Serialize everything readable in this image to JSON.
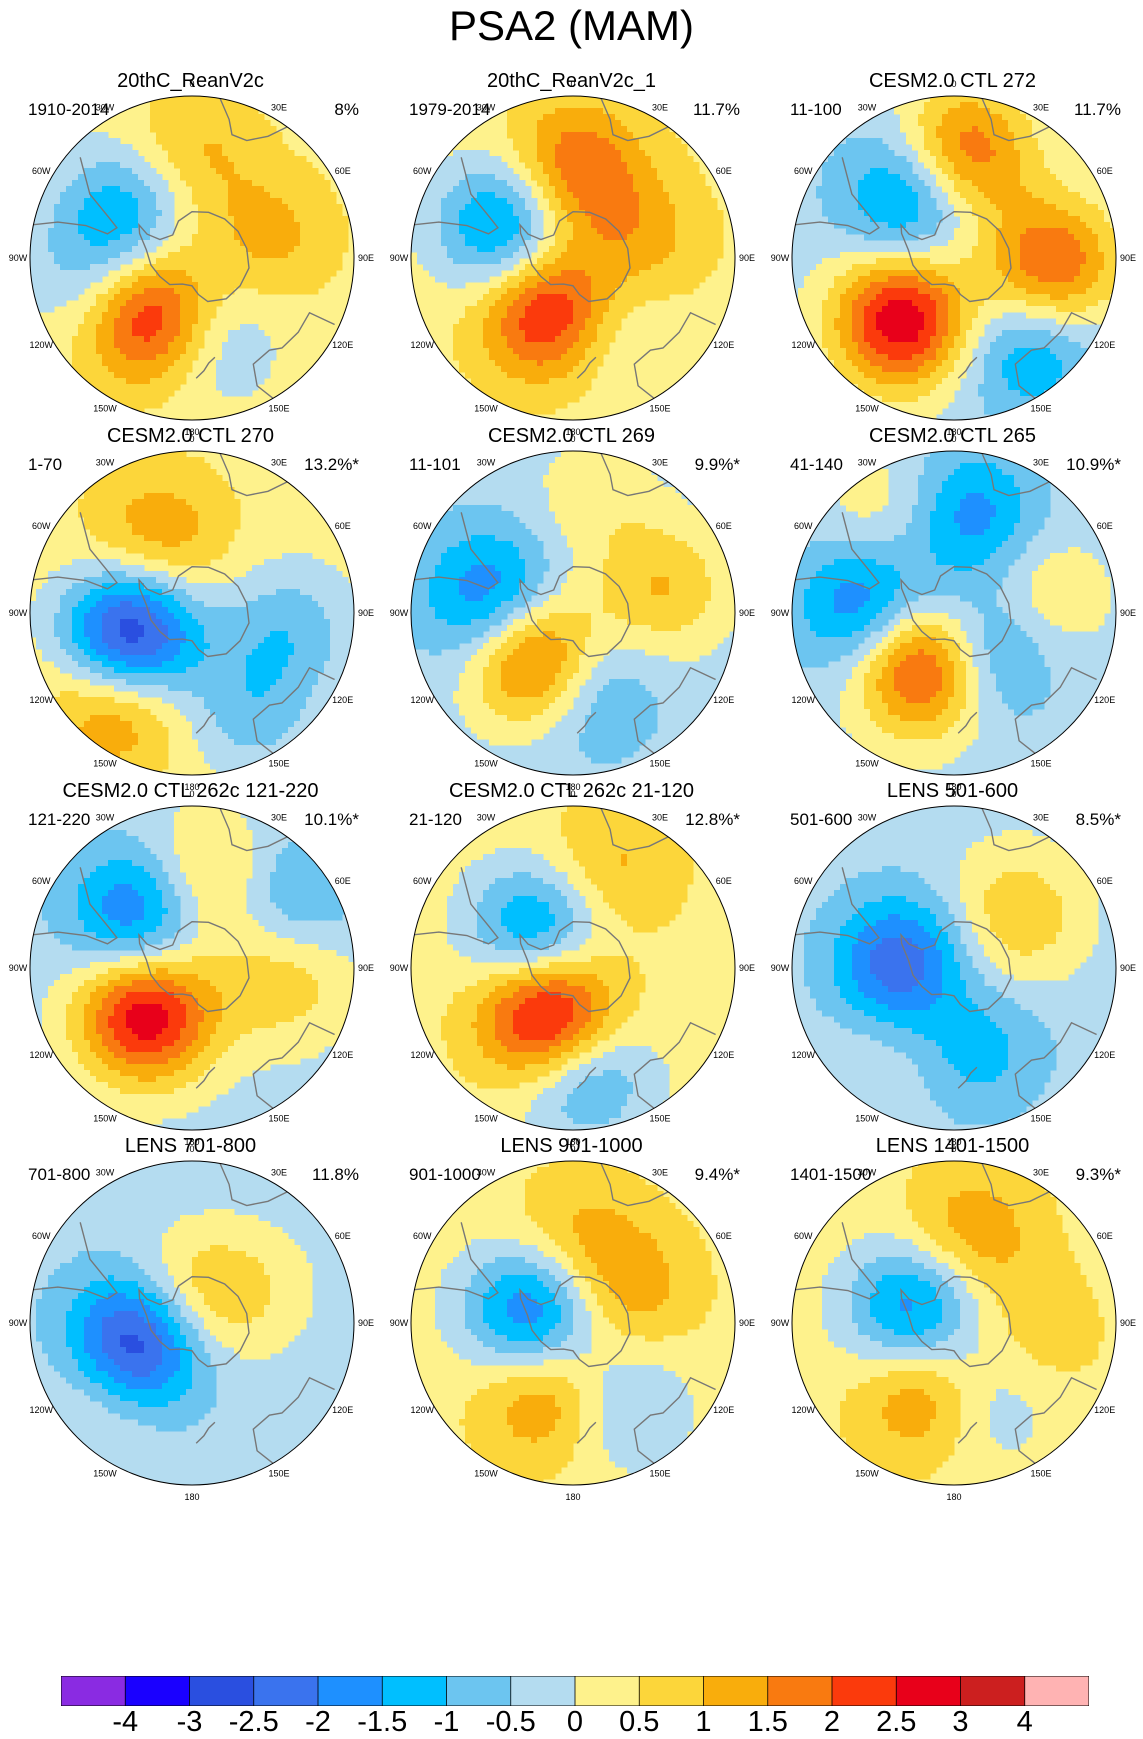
{
  "figure": {
    "title": "PSA2 (MAM)"
  },
  "map_labels": {
    "top": "0",
    "bottom": "180",
    "lon_30w": "30W",
    "lon_30e": "30E",
    "lon_60w": "60W",
    "lon_60e": "60E",
    "lon_90w": "90W",
    "lon_90e": "90E",
    "lon_120w": "120W",
    "lon_120e": "120E",
    "lon_150w": "150W",
    "lon_150e": "150E"
  },
  "colors": {
    "levels": [
      "#8a2be2",
      "#1a00ff",
      "#2a4fe0",
      "#3a73ee",
      "#1e90ff",
      "#00bfff",
      "#6cc5f0",
      "#b4dcf0",
      "#fef28c",
      "#fcd63a",
      "#f9ad0c",
      "#f97a10",
      "#fb3a0c",
      "#e8001a",
      "#cc1f1f",
      "#ffb3b3"
    ],
    "coast": "#777777",
    "frame": "#000000"
  },
  "chart_data": {
    "type": "heatmap",
    "title": "PSA2 (MAM)",
    "legend": {
      "position": "bottom",
      "ticks": [
        "-4",
        "-3",
        "-2.5",
        "-2",
        "-1.5",
        "-1",
        "-0.5",
        "0",
        "0.5",
        "1",
        "1.5",
        "2",
        "2.5",
        "3",
        "4"
      ],
      "levels": [
        -4,
        -3,
        -2.5,
        -2,
        -1.5,
        -1,
        -0.5,
        0,
        0.5,
        1,
        1.5,
        2,
        2.5,
        3,
        4
      ]
    },
    "panels": [
      {
        "title": "20thC_ReanV2c",
        "period": "1910-2014",
        "variance": "8%",
        "background": 0.25,
        "centers": [
          {
            "lon": -150,
            "lat": -60,
            "value": 3.2
          },
          {
            "lon": -55,
            "lat": -55,
            "value": -1.6
          },
          {
            "lon": 175,
            "lat": -58,
            "value": -1.6
          },
          {
            "lon": 0,
            "lat": -45,
            "value": 0.9
          },
          {
            "lon": 75,
            "lat": -55,
            "value": 0.9
          },
          {
            "lon": -100,
            "lat": -45,
            "value": -0.8
          }
        ]
      },
      {
        "title": "20thC_ReanV2c_1",
        "period": "1979-2014",
        "variance": "11.7%",
        "background": 0.3,
        "centers": [
          {
            "lon": -160,
            "lat": -65,
            "value": 3.0
          },
          {
            "lon": -65,
            "lat": -58,
            "value": -2.3
          },
          {
            "lon": 0,
            "lat": -52,
            "value": 1.8
          },
          {
            "lon": 160,
            "lat": -60,
            "value": -1.2
          },
          {
            "lon": 75,
            "lat": -60,
            "value": 0.9
          }
        ]
      },
      {
        "title": "CESM2.0 CTL 272",
        "period": "11-100",
        "variance": "11.7%",
        "background": -0.25,
        "centers": [
          {
            "lon": -140,
            "lat": -55,
            "value": 3.2
          },
          {
            "lon": 5,
            "lat": -45,
            "value": 2.4
          },
          {
            "lon": 95,
            "lat": -48,
            "value": 2.4
          },
          {
            "lon": -35,
            "lat": -58,
            "value": -1.9
          },
          {
            "lon": 140,
            "lat": -40,
            "value": -1.4
          }
        ]
      },
      {
        "title": "CESM2.0 CTL 270",
        "period": "1-70",
        "variance": "13.2%*",
        "background": 0.3,
        "centers": [
          {
            "lon": -110,
            "lat": -62,
            "value": -3.6
          },
          {
            "lon": -140,
            "lat": -40,
            "value": 1.6
          },
          {
            "lon": -25,
            "lat": -55,
            "value": 1.2
          },
          {
            "lon": 100,
            "lat": -48,
            "value": -1.1
          },
          {
            "lon": 150,
            "lat": -40,
            "value": -1.0
          }
        ]
      },
      {
        "title": "CESM2.0 CTL 269",
        "period": "11-101",
        "variance": "9.9%*",
        "background": -0.3,
        "centers": [
          {
            "lon": -145,
            "lat": -65,
            "value": 3.3
          },
          {
            "lon": -80,
            "lat": -55,
            "value": -1.9
          },
          {
            "lon": 75,
            "lat": -50,
            "value": 1.3
          },
          {
            "lon": 175,
            "lat": -60,
            "value": -1.6
          },
          {
            "lon": 10,
            "lat": -40,
            "value": 0.6
          }
        ]
      },
      {
        "title": "CESM2.0 CTL 265",
        "period": "41-140",
        "variance": "10.9%*",
        "background": -0.25,
        "centers": [
          {
            "lon": -150,
            "lat": -65,
            "value": 3.3
          },
          {
            "lon": -85,
            "lat": -52,
            "value": -2.0
          },
          {
            "lon": 140,
            "lat": -70,
            "value": -1.9
          },
          {
            "lon": 10,
            "lat": -48,
            "value": -1.6
          },
          {
            "lon": 80,
            "lat": -55,
            "value": 1.0
          },
          {
            "lon": -35,
            "lat": -40,
            "value": 0.8
          }
        ]
      },
      {
        "title": "CESM2.0 CTL 262c 121-220",
        "period": "121-220",
        "variance": "10.1%*",
        "background": -0.25,
        "centers": [
          {
            "lon": -135,
            "lat": -62,
            "value": 3.2
          },
          {
            "lon": -45,
            "lat": -58,
            "value": -2.1
          },
          {
            "lon": 10,
            "lat": -52,
            "value": 1.4
          },
          {
            "lon": 95,
            "lat": -50,
            "value": 1.2
          },
          {
            "lon": 55,
            "lat": -40,
            "value": -1.1
          }
        ]
      },
      {
        "title": "CESM2.0 CTL 262c 21-120",
        "period": "21-120",
        "variance": "12.8%*",
        "background": 0.3,
        "centers": [
          {
            "lon": -155,
            "lat": -67,
            "value": 3.4
          },
          {
            "lon": -45,
            "lat": -68,
            "value": -2.2
          },
          {
            "lon": 175,
            "lat": -45,
            "value": -1.9
          },
          {
            "lon": 20,
            "lat": -45,
            "value": 0.9
          }
        ]
      },
      {
        "title": "LENS 501-600",
        "period": "501-600",
        "variance": "8.5%*",
        "background": -0.25,
        "centers": [
          {
            "lon": -90,
            "lat": -68,
            "value": -2.6
          },
          {
            "lon": 50,
            "lat": -55,
            "value": 1.2
          },
          {
            "lon": -140,
            "lat": -75,
            "value": 0.7
          },
          {
            "lon": 165,
            "lat": -55,
            "value": -1.1
          },
          {
            "lon": -140,
            "lat": -40,
            "value": 0.4
          }
        ]
      },
      {
        "title": "LENS 701-800",
        "period": "701-800",
        "variance": "11.8%",
        "background": -0.3,
        "centers": [
          {
            "lon": -110,
            "lat": -65,
            "value": -3.1
          },
          {
            "lon": -10,
            "lat": -80,
            "value": 1.3
          },
          {
            "lon": -130,
            "lat": -40,
            "value": 0.8
          },
          {
            "lon": 60,
            "lat": -60,
            "value": 0.6
          }
        ]
      },
      {
        "title": "LENS 901-1000",
        "period": "901-1000",
        "variance": "9.4%*",
        "background": 0.3,
        "centers": [
          {
            "lon": -75,
            "lat": -72,
            "value": -2.6
          },
          {
            "lon": -160,
            "lat": -58,
            "value": 1.6
          },
          {
            "lon": 0,
            "lat": -55,
            "value": 0.9
          },
          {
            "lon": 60,
            "lat": -62,
            "value": 1.0
          },
          {
            "lon": 150,
            "lat": -50,
            "value": -1.1
          }
        ]
      },
      {
        "title": "LENS 1401-1500",
        "period": "1401-1500",
        "variance": "9.3%*",
        "background": 0.3,
        "centers": [
          {
            "lon": -70,
            "lat": -72,
            "value": -2.3
          },
          {
            "lon": -160,
            "lat": -58,
            "value": 1.7
          },
          {
            "lon": 10,
            "lat": -52,
            "value": 1.2
          },
          {
            "lon": 160,
            "lat": -55,
            "value": -1.1
          },
          {
            "lon": 100,
            "lat": -55,
            "value": 0.6
          }
        ]
      }
    ]
  }
}
